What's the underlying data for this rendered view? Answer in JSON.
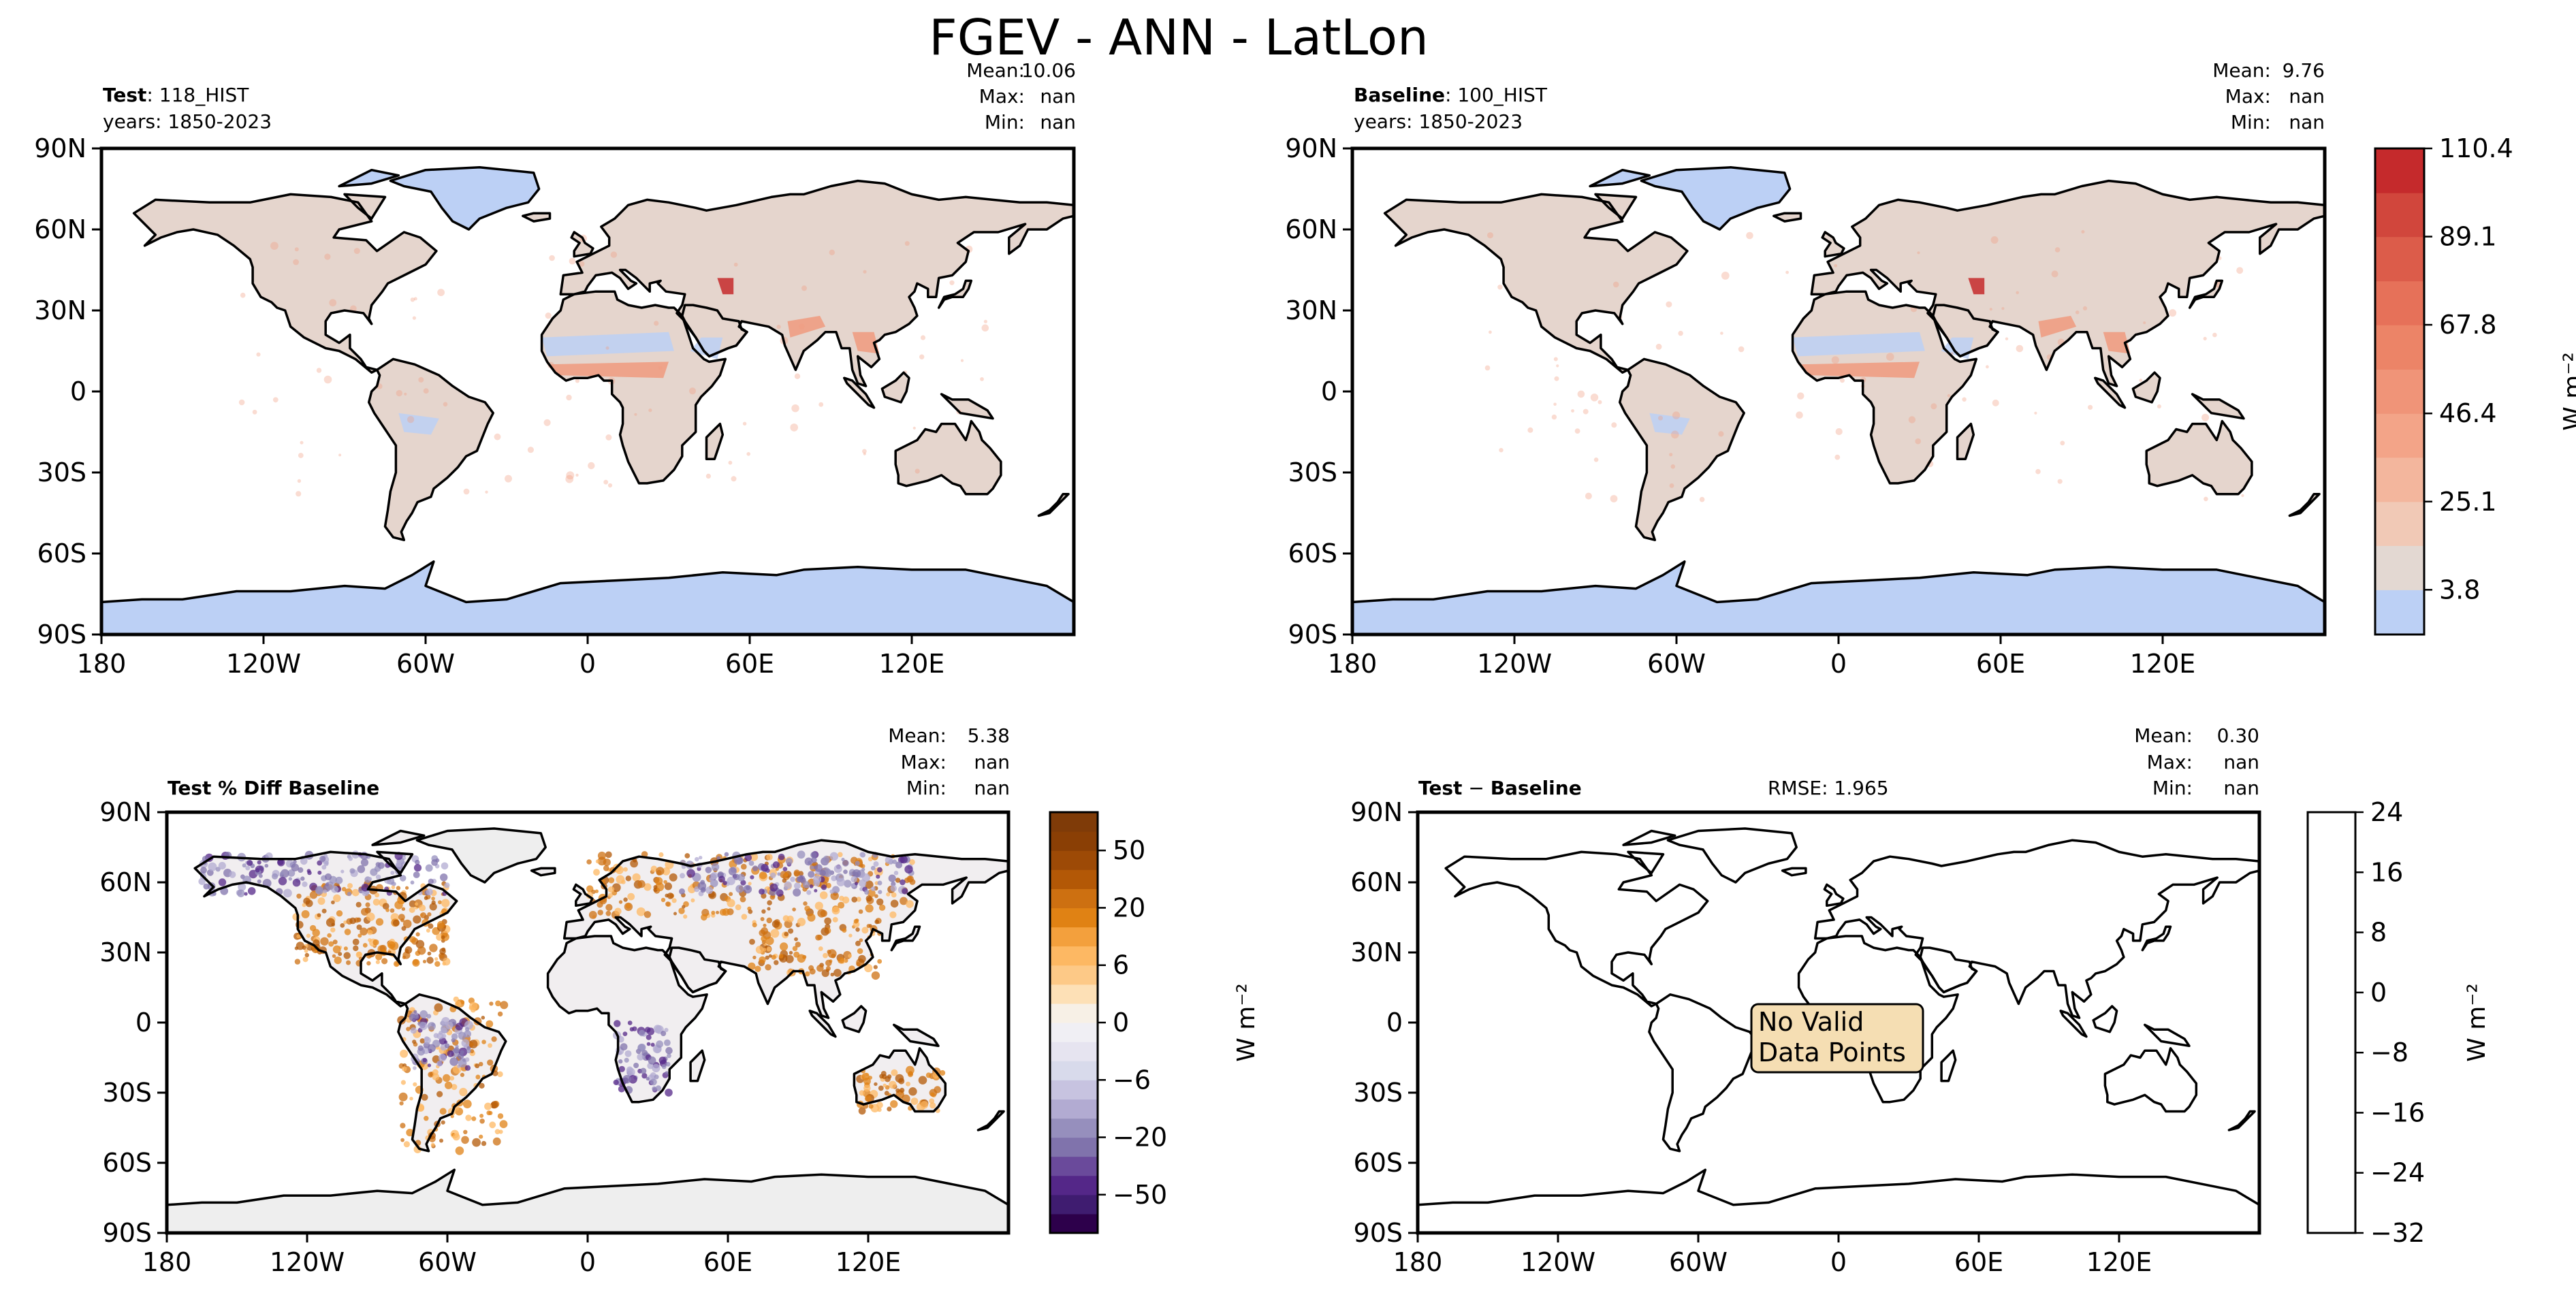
{
  "title": "FGEV - ANN - LatLon",
  "lat_ticks": [
    "90N",
    "60N",
    "30N",
    "0",
    "30S",
    "60S",
    "90S"
  ],
  "lon_ticks": [
    "180",
    "120W",
    "60W",
    "0",
    "60E",
    "120E"
  ],
  "colors": {
    "ocean": "#ffffff",
    "test_land": "#e5d5cd",
    "ice": "#bcd0f5",
    "warm_high": "#f09a7e",
    "warm_peak": "#c52a2c",
    "diff_brown": "#c56a1a",
    "diff_purple": "#8a7cb8",
    "diff_neutral": "#eeeeee",
    "no_data_box": "#f5deb3"
  },
  "chart_data": [
    {
      "type": "heatmap",
      "panel": "test",
      "title_bold": "Test",
      "title_rest": ": 118_HIST",
      "years": "years: 1850-2023",
      "stats": [
        {
          "label": "Mean:",
          "value": "10.06"
        },
        {
          "label": "Max:",
          "value": "nan"
        },
        {
          "label": "Min:",
          "value": "nan"
        }
      ],
      "xlim": [
        -180,
        180
      ],
      "ylim": [
        -90,
        90
      ]
    },
    {
      "type": "heatmap",
      "panel": "baseline",
      "title_bold": "Baseline",
      "title_rest": ": 100_HIST",
      "years": "years: 1850-2023",
      "stats": [
        {
          "label": "Mean:",
          "value": "9.76"
        },
        {
          "label": "Max:",
          "value": "nan"
        },
        {
          "label": "Min:",
          "value": "nan"
        }
      ],
      "xlim": [
        -180,
        180
      ],
      "ylim": [
        -90,
        90
      ],
      "colorbar": {
        "label": "W m⁻²",
        "ticks": [
          "3.8",
          "25.1",
          "46.4",
          "67.8",
          "89.1",
          "110.4"
        ],
        "tick_values": [
          3.8,
          25.1,
          46.4,
          67.8,
          89.1,
          110.4
        ],
        "range": [
          -7,
          110.4
        ],
        "levels": [
          -7,
          3.8,
          14.5,
          25.1,
          35.8,
          46.4,
          57.1,
          67.8,
          78.4,
          89.1,
          99.7,
          110.4
        ],
        "colors": [
          "#bcd0f5",
          "#e3d8d2",
          "#f1c9b6",
          "#f3b69d",
          "#f3a488",
          "#f09478",
          "#ec8467",
          "#e67159",
          "#dc5c4a",
          "#d1463c",
          "#c52a2c"
        ]
      }
    },
    {
      "type": "heatmap",
      "panel": "pct_diff",
      "title_bold": "Test % Diff Baseline",
      "title_rest": "",
      "stats": [
        {
          "label": "Mean:",
          "value": "5.38"
        },
        {
          "label": "Max:",
          "value": "nan"
        },
        {
          "label": "Min:",
          "value": "nan"
        }
      ],
      "xlim": [
        -180,
        180
      ],
      "ylim": [
        -90,
        90
      ],
      "colorbar": {
        "label": "W m⁻²",
        "ticks": [
          "50",
          "20",
          "6",
          "0",
          "−6",
          "−20",
          "−50"
        ],
        "tick_values": [
          50,
          20,
          6,
          0,
          -6,
          -20,
          -50
        ],
        "levels": [
          -70,
          -60,
          -50,
          -40,
          -30,
          -20,
          -15,
          -10,
          -6,
          -3,
          -1,
          0,
          1,
          3,
          6,
          10,
          15,
          20,
          30,
          40,
          50,
          60,
          70
        ],
        "colors": [
          "#2d004b",
          "#3f1c70",
          "#542788",
          "#6a4a9b",
          "#8073ac",
          "#968fbd",
          "#b2abd2",
          "#c7c3e0",
          "#d8daeb",
          "#e6e4f0",
          "#f0eff4",
          "#f7f0e6",
          "#fde0b6",
          "#fdc987",
          "#fdb863",
          "#f3a03d",
          "#e08214",
          "#cd7011",
          "#b35806",
          "#9d4a06",
          "#8a3f05",
          "#7f3b08"
        ]
      }
    },
    {
      "type": "heatmap",
      "panel": "diff",
      "title_bold": "Test",
      "title_mid": " − ",
      "title_bold2": "Baseline",
      "rmse": "RMSE: 1.965",
      "stats": [
        {
          "label": "Mean:",
          "value": "0.30"
        },
        {
          "label": "Max:",
          "value": "nan"
        },
        {
          "label": "Min:",
          "value": "nan"
        }
      ],
      "no_data": [
        "No Valid",
        "Data Points"
      ],
      "xlim": [
        -180,
        180
      ],
      "ylim": [
        -90,
        90
      ],
      "colorbar": {
        "label": "W m⁻²",
        "ticks": [
          "24",
          "16",
          "8",
          "0",
          "−8",
          "−16",
          "−24",
          "−32"
        ],
        "tick_values": [
          24,
          16,
          8,
          0,
          -8,
          -16,
          -24,
          -32
        ],
        "range": [
          -32,
          24
        ]
      }
    }
  ]
}
